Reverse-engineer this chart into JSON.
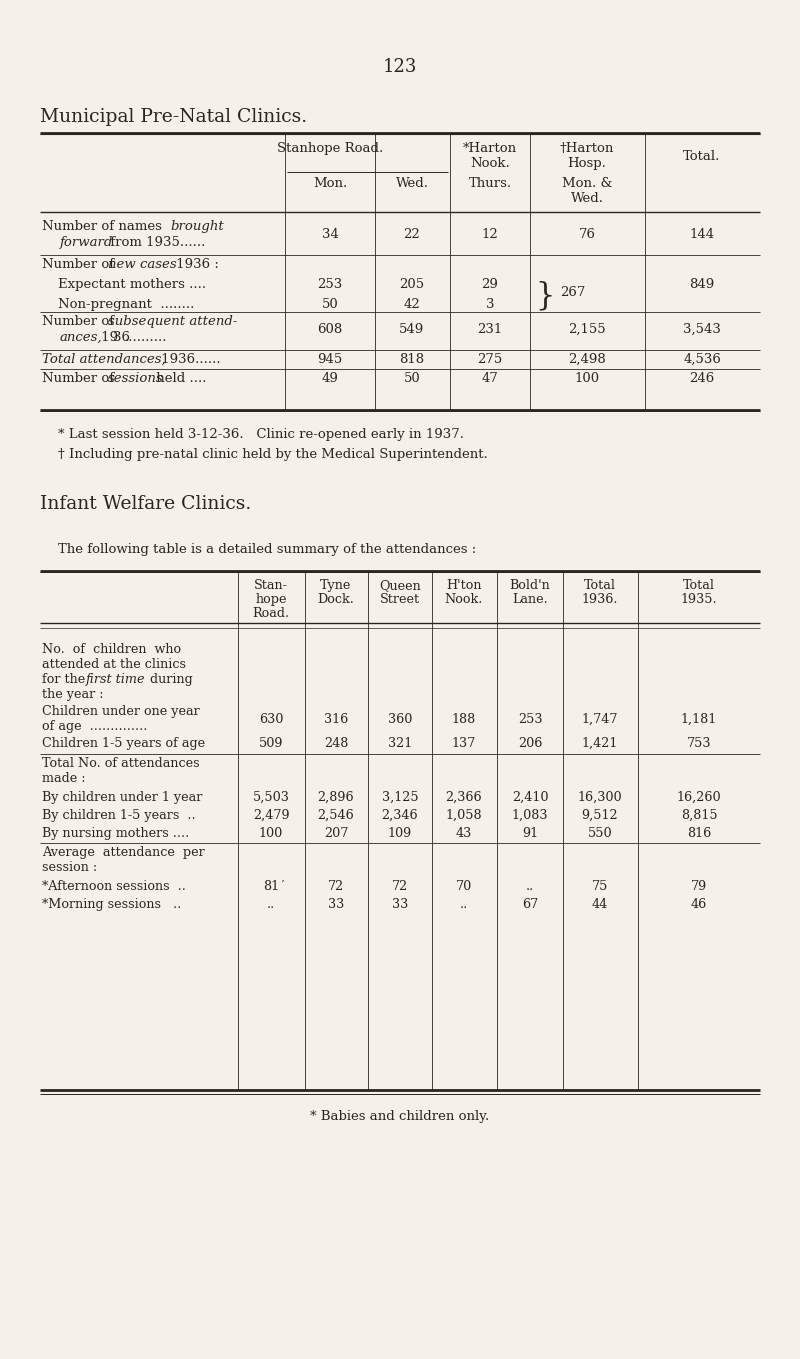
{
  "page_number": "123",
  "bg_color": "#f5f0e8",
  "text_color": "#2a2520",
  "section1_title": "Municipal Pre-Natal Clinics.",
  "table1_note1": "* Last session held 3-12-36.   Clinic re-opened early in 1937.",
  "table1_note2": "† Including pre-natal clinic held by the Medical Superintendent.",
  "section2_title": "Infant Welfare Clinics.",
  "table2_intro": "The following table is a detailed summary of the attendances :",
  "footnote": "* Babies and children only."
}
